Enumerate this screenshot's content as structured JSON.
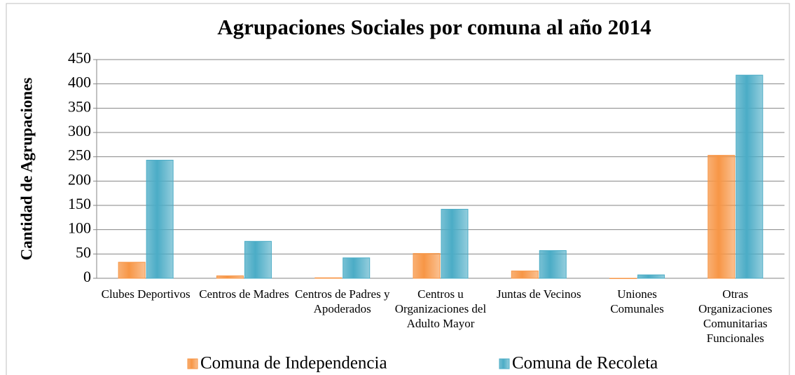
{
  "chart_data": {
    "type": "bar",
    "title": "Agrupaciones Sociales por comuna al año 2014",
    "y_label": "Cantidad de  Agrupaciones",
    "categories": [
      "Clubes Deportivos",
      "Centros de Madres",
      "Centros de Padres y Apoderados",
      "Centros u Organizaciones del Adulto Mayor",
      "Juntas de Vecinos",
      "Uniones Comunales",
      "Otras Organizaciones Comunitarias Funcionales"
    ],
    "series": [
      {
        "name": "Comuna de Independencia",
        "color": "#f79646",
        "values": [
          33,
          5,
          1,
          51,
          15,
          0,
          253
        ]
      },
      {
        "name": "Comuna de Recoleta",
        "color": "#4bacc6",
        "values": [
          243,
          76,
          42,
          142,
          57,
          7,
          418
        ]
      }
    ],
    "ylim": [
      0,
      450
    ],
    "yticks": [
      0,
      50,
      100,
      150,
      200,
      250,
      300,
      350,
      400,
      450
    ],
    "grid": true,
    "legend": "bottom"
  }
}
